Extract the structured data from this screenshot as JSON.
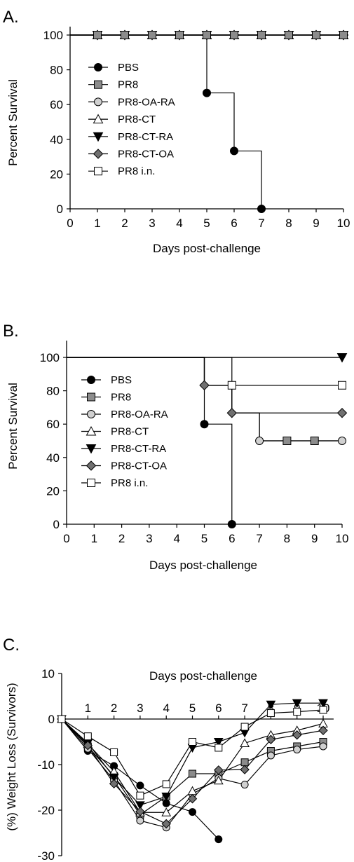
{
  "chart_data": [
    {
      "panel": "A.",
      "type": "line",
      "step": true,
      "xlabel": "Days post-challenge",
      "ylabel": "Percent Survival",
      "xlim": [
        0,
        10
      ],
      "ylim": [
        0,
        100
      ],
      "xticks": [
        0,
        1,
        2,
        3,
        4,
        5,
        6,
        7,
        8,
        9,
        10
      ],
      "yticks": [
        0,
        20,
        40,
        60,
        80,
        100
      ],
      "legend_position": "left",
      "series": [
        {
          "name": "PBS",
          "marker": "circle",
          "fill": "#000000",
          "x": [
            0,
            1,
            2,
            3,
            4,
            5,
            6,
            7
          ],
          "y": [
            100,
            100,
            100,
            100,
            100,
            66.7,
            33.3,
            0
          ],
          "markers_at": [
            5,
            6,
            7
          ]
        },
        {
          "name": "PR8",
          "marker": "square",
          "fill": "#8c8c8c",
          "x": [
            0,
            1,
            2,
            3,
            4,
            5,
            6,
            7,
            8,
            9,
            10
          ],
          "y": [
            100,
            100,
            100,
            100,
            100,
            100,
            100,
            100,
            100,
            100,
            100
          ],
          "markers_at": [
            1,
            2,
            3,
            4,
            5,
            6,
            7,
            8,
            9,
            10
          ]
        },
        {
          "name": "PR8-OA-RA",
          "marker": "circle",
          "fill": "#d0d0d0",
          "x": [
            0,
            1,
            2,
            3,
            4,
            5,
            6,
            7,
            8,
            9,
            10
          ],
          "y": [
            100,
            100,
            100,
            100,
            100,
            100,
            100,
            100,
            100,
            100,
            100
          ],
          "markers_at": [
            1,
            2,
            3,
            4,
            5,
            6,
            7,
            8,
            9,
            10
          ]
        },
        {
          "name": "PR8-CT",
          "marker": "triangle-up",
          "fill": "#ffffff",
          "x": [
            0,
            1,
            2,
            3,
            4,
            5,
            6,
            7,
            8,
            9,
            10
          ],
          "y": [
            100,
            100,
            100,
            100,
            100,
            100,
            100,
            100,
            100,
            100,
            100
          ],
          "markers_at": [
            1,
            2,
            3,
            4,
            5,
            6,
            7,
            8,
            9,
            10
          ]
        },
        {
          "name": "PR8-CT-RA",
          "marker": "triangle-down",
          "fill": "#000000",
          "x": [
            0,
            1,
            2,
            3,
            4,
            5,
            6,
            7,
            8,
            9,
            10
          ],
          "y": [
            100,
            100,
            100,
            100,
            100,
            100,
            100,
            100,
            100,
            100,
            100
          ],
          "markers_at": [
            1,
            2,
            3,
            4,
            5,
            6,
            7,
            8,
            9,
            10
          ]
        },
        {
          "name": "PR8-CT-OA",
          "marker": "diamond",
          "fill": "#707070",
          "x": [
            0,
            1,
            2,
            3,
            4,
            5,
            6,
            7,
            8,
            9,
            10
          ],
          "y": [
            100,
            100,
            100,
            100,
            100,
            100,
            100,
            100,
            100,
            100,
            100
          ],
          "markers_at": [
            1,
            2,
            3,
            4,
            5,
            6,
            7,
            8,
            9,
            10
          ]
        },
        {
          "name": "PR8 i.n.",
          "marker": "square",
          "fill": "#ffffff",
          "x": [
            0,
            1,
            2,
            3,
            4,
            5,
            6,
            7,
            8,
            9,
            10
          ],
          "y": [
            100,
            100,
            100,
            100,
            100,
            100,
            100,
            100,
            100,
            100,
            100
          ],
          "markers_at": [
            1,
            2,
            3,
            4,
            5,
            6,
            7,
            8,
            9,
            10
          ]
        }
      ]
    },
    {
      "panel": "B.",
      "type": "line",
      "step": true,
      "xlabel": "Days post-challenge",
      "ylabel": "Percent Survival",
      "xlim": [
        0,
        10
      ],
      "ylim": [
        0,
        100
      ],
      "xticks": [
        0,
        1,
        2,
        3,
        4,
        5,
        6,
        7,
        8,
        9,
        10
      ],
      "yticks": [
        0,
        20,
        40,
        60,
        80,
        100
      ],
      "legend_position": "left",
      "series": [
        {
          "name": "PBS",
          "marker": "circle",
          "fill": "#000000",
          "x": [
            0,
            5,
            6
          ],
          "y": [
            100,
            60,
            0
          ],
          "markers_at": [
            5,
            6
          ]
        },
        {
          "name": "PR8",
          "marker": "square",
          "fill": "#8c8c8c",
          "x": [
            0,
            5,
            6,
            7,
            8,
            9,
            10
          ],
          "y": [
            100,
            83.3,
            66.7,
            50,
            50,
            50,
            50
          ],
          "markers_at": [
            8,
            9
          ]
        },
        {
          "name": "PR8-OA-RA",
          "marker": "circle",
          "fill": "#d0d0d0",
          "x": [
            0,
            5,
            6,
            7,
            10
          ],
          "y": [
            100,
            83.3,
            66.7,
            50,
            50
          ],
          "markers_at": [
            7,
            10
          ]
        },
        {
          "name": "PR8-CT",
          "marker": "triangle-up",
          "fill": "#ffffff",
          "x": [
            0,
            10
          ],
          "y": [
            100,
            100
          ],
          "markers_at": []
        },
        {
          "name": "PR8-CT-RA",
          "marker": "triangle-down",
          "fill": "#000000",
          "x": [
            0,
            10
          ],
          "y": [
            100,
            100
          ],
          "markers_at": [
            10
          ]
        },
        {
          "name": "PR8-CT-OA",
          "marker": "diamond",
          "fill": "#707070",
          "x": [
            0,
            5,
            6,
            10
          ],
          "y": [
            100,
            83.3,
            66.7,
            66.7
          ],
          "markers_at": [
            5,
            6,
            10
          ]
        },
        {
          "name": "PR8 i.n.",
          "marker": "square",
          "fill": "#ffffff",
          "x": [
            0,
            6,
            10
          ],
          "y": [
            100,
            83.3,
            83.3
          ],
          "markers_at": [
            6,
            10
          ]
        }
      ]
    },
    {
      "panel": "C.",
      "type": "line",
      "step": false,
      "xlabel": "Days post-challenge",
      "ylabel": "(%) Weight Loss (Survivors)",
      "xlim": [
        0,
        10.5
      ],
      "ylim": [
        -30,
        10
      ],
      "xticks": [
        1,
        2,
        3,
        4,
        5,
        6,
        7,
        8,
        9,
        10
      ],
      "yticks": [
        10,
        0,
        -10,
        -20,
        -30
      ],
      "legend_position": "none",
      "series": [
        {
          "name": "PBS",
          "marker": "circle",
          "fill": "#000000",
          "x": [
            0,
            1,
            2,
            3,
            4,
            5,
            6
          ],
          "y": [
            0,
            -7,
            -10.3,
            -14.6,
            -18.5,
            -20.4,
            -26.4
          ]
        },
        {
          "name": "PR8",
          "marker": "square",
          "fill": "#8c8c8c",
          "x": [
            0,
            1,
            2,
            3,
            4,
            5,
            6,
            7,
            8,
            9,
            10
          ],
          "y": [
            0,
            -6,
            -12.5,
            -21,
            -17,
            -12,
            -12,
            -9.5,
            -7,
            -6,
            -5
          ]
        },
        {
          "name": "PR8-OA-RA",
          "marker": "circle",
          "fill": "#d0d0d0",
          "x": [
            0,
            1,
            2,
            3,
            4,
            5,
            6,
            7,
            8,
            9,
            10
          ],
          "y": [
            0,
            -6.5,
            -13.5,
            -22.3,
            -23.8,
            -16.5,
            -13,
            -14.4,
            -8,
            -6.7,
            -6
          ]
        },
        {
          "name": "PR8-CT",
          "marker": "triangle-up",
          "fill": "#ffffff",
          "x": [
            0,
            1,
            2,
            3,
            4,
            5,
            6,
            7,
            8,
            9,
            10
          ],
          "y": [
            0,
            -5.5,
            -11.5,
            -20.5,
            -20.5,
            -15.8,
            -13.5,
            -5.3,
            -3.5,
            -2.5,
            -1
          ]
        },
        {
          "name": "PR8-CT-RA",
          "marker": "triangle-down",
          "fill": "#000000",
          "x": [
            0,
            1,
            2,
            3,
            4,
            5,
            6,
            7,
            8,
            9,
            10
          ],
          "y": [
            0,
            -5.3,
            -12.8,
            -18.9,
            -17,
            -6.3,
            -5,
            -3,
            3.2,
            3.5,
            3.5
          ]
        },
        {
          "name": "PR8-CT-OA",
          "marker": "diamond",
          "fill": "#707070",
          "x": [
            0,
            1,
            2,
            3,
            4,
            5,
            6,
            7,
            8,
            9,
            10
          ],
          "y": [
            0,
            -5.8,
            -14.2,
            -20.3,
            -23,
            -17.5,
            -11.2,
            -11.1,
            -4.5,
            -3.5,
            -2.5
          ]
        },
        {
          "name": "PR8 i.n.",
          "marker": "square",
          "fill": "#ffffff",
          "x": [
            0,
            1,
            2,
            3,
            4,
            5,
            6,
            7,
            8,
            9,
            10
          ],
          "y": [
            0,
            -3.8,
            -7.3,
            -16.8,
            -14.3,
            -5,
            -6.3,
            -1.7,
            1.3,
            1.6,
            2
          ]
        }
      ]
    }
  ]
}
